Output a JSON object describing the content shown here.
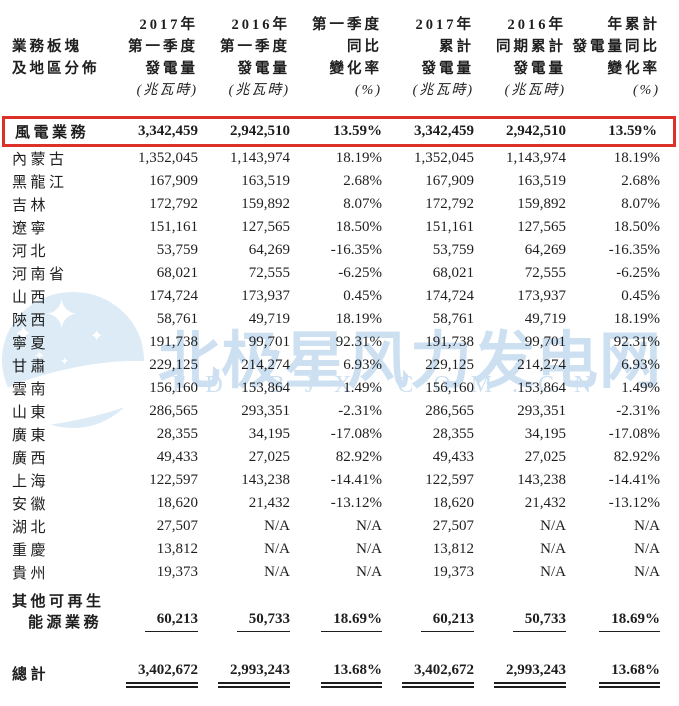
{
  "watermark": {
    "text": "北极星风力发电网",
    "subtext": "FD.BJX.COM.CN",
    "color": "#cde0f1",
    "star_glyph": "✦"
  },
  "colors": {
    "highlight_red": "#dc3128",
    "text": "#1e1e1e",
    "watermark_blue": "#cde0f1"
  },
  "table": {
    "columns": [
      {
        "name": "segment-region",
        "lines": [
          "業務板塊",
          "及地區分佈"
        ]
      },
      {
        "name": "q1-2017-generation",
        "lines": [
          "2017年",
          "第一季度",
          "發電量",
          "(兆瓦時)"
        ]
      },
      {
        "name": "q1-2016-generation",
        "lines": [
          "2016年",
          "第一季度",
          "發電量",
          "(兆瓦時)"
        ]
      },
      {
        "name": "q1-yoy-change",
        "lines": [
          "第一季度",
          "同比",
          "變化率",
          "(%)"
        ]
      },
      {
        "name": "ytd-2017-generation",
        "lines": [
          "2017年",
          "累計",
          "發電量",
          "(兆瓦時)"
        ]
      },
      {
        "name": "ytd-2016-generation",
        "lines": [
          "2016年",
          "同期累計",
          "發電量",
          "(兆瓦時)"
        ]
      },
      {
        "name": "ytd-yoy-change",
        "lines": [
          "年累計",
          "發電量同比",
          "變化率",
          "(%)"
        ]
      }
    ],
    "rows": [
      {
        "label": "風電業務",
        "values": [
          "3,342,459",
          "2,942,510",
          "13.59%",
          "3,342,459",
          "2,942,510",
          "13.59%"
        ],
        "bold": true,
        "highlight": true
      },
      {
        "label": "內蒙古",
        "values": [
          "1,352,045",
          "1,143,974",
          "18.19%",
          "1,352,045",
          "1,143,974",
          "18.19%"
        ]
      },
      {
        "label": "黑龍江",
        "values": [
          "167,909",
          "163,519",
          "2.68%",
          "167,909",
          "163,519",
          "2.68%"
        ]
      },
      {
        "label": "吉林",
        "values": [
          "172,792",
          "159,892",
          "8.07%",
          "172,792",
          "159,892",
          "8.07%"
        ]
      },
      {
        "label": "遼寧",
        "values": [
          "151,161",
          "127,565",
          "18.50%",
          "151,161",
          "127,565",
          "18.50%"
        ]
      },
      {
        "label": "河北",
        "values": [
          "53,759",
          "64,269",
          "-16.35%",
          "53,759",
          "64,269",
          "-16.35%"
        ]
      },
      {
        "label": "河南省",
        "values": [
          "68,021",
          "72,555",
          "-6.25%",
          "68,021",
          "72,555",
          "-6.25%"
        ]
      },
      {
        "label": "山西",
        "values": [
          "174,724",
          "173,937",
          "0.45%",
          "174,724",
          "173,937",
          "0.45%"
        ]
      },
      {
        "label": "陝西",
        "values": [
          "58,761",
          "49,719",
          "18.19%",
          "58,761",
          "49,719",
          "18.19%"
        ]
      },
      {
        "label": "寧夏",
        "values": [
          "191,738",
          "99,701",
          "92.31%",
          "191,738",
          "99,701",
          "92.31%"
        ]
      },
      {
        "label": "甘肅",
        "values": [
          "229,125",
          "214,274",
          "6.93%",
          "229,125",
          "214,274",
          "6.93%"
        ]
      },
      {
        "label": "雲南",
        "values": [
          "156,160",
          "153,864",
          "1.49%",
          "156,160",
          "153,864",
          "1.49%"
        ]
      },
      {
        "label": "山東",
        "values": [
          "286,565",
          "293,351",
          "-2.31%",
          "286,565",
          "293,351",
          "-2.31%"
        ]
      },
      {
        "label": "廣東",
        "values": [
          "28,355",
          "34,195",
          "-17.08%",
          "28,355",
          "34,195",
          "-17.08%"
        ]
      },
      {
        "label": "廣西",
        "values": [
          "49,433",
          "27,025",
          "82.92%",
          "49,433",
          "27,025",
          "82.92%"
        ]
      },
      {
        "label": "上海",
        "values": [
          "122,597",
          "143,238",
          "-14.41%",
          "122,597",
          "143,238",
          "-14.41%"
        ]
      },
      {
        "label": "安徽",
        "values": [
          "18,620",
          "21,432",
          "-13.12%",
          "18,620",
          "21,432",
          "-13.12%"
        ]
      },
      {
        "label": "湖北",
        "values": [
          "27,507",
          "N/A",
          "N/A",
          "27,507",
          "N/A",
          "N/A"
        ]
      },
      {
        "label": "重慶",
        "values": [
          "13,812",
          "N/A",
          "N/A",
          "13,812",
          "N/A",
          "N/A"
        ]
      },
      {
        "label": "貴州",
        "values": [
          "19,373",
          "N/A",
          "N/A",
          "19,373",
          "N/A",
          "N/A"
        ]
      },
      {
        "label": "其他可再生",
        "label2": "能源業務",
        "values": [
          "60,213",
          "50,733",
          "18.69%",
          "60,213",
          "50,733",
          "18.69%"
        ],
        "bold": true,
        "underline": "single"
      },
      {
        "label": "總計",
        "values": [
          "3,402,672",
          "2,993,243",
          "13.68%",
          "3,402,672",
          "2,993,243",
          "13.68%"
        ],
        "bold": true,
        "underline": "double",
        "gap_before": true
      }
    ]
  }
}
